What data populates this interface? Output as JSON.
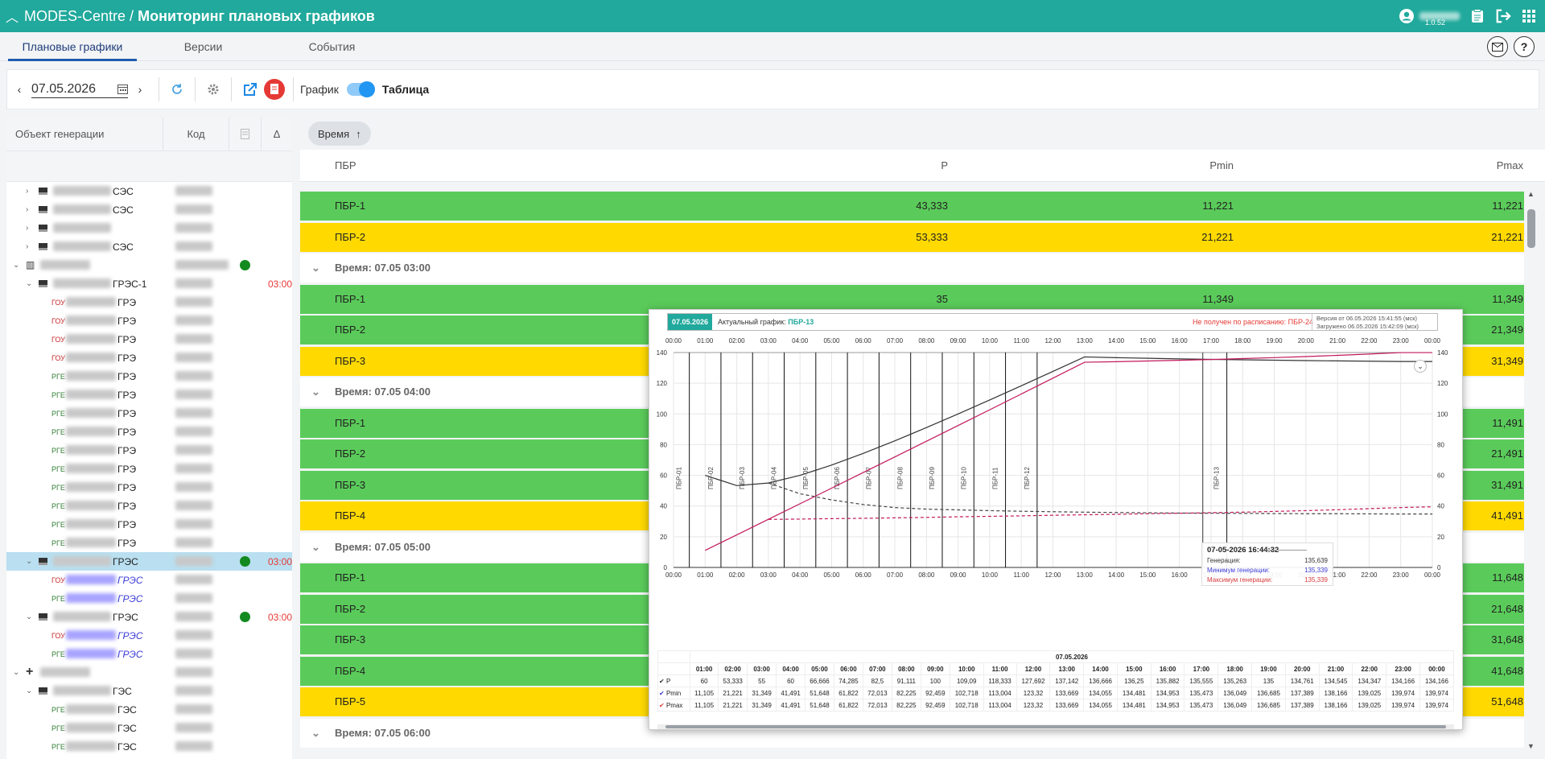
{
  "app": {
    "brand": "MODES-Centre",
    "separator": "/",
    "page_title": "Мониторинг плановых графиков",
    "version": "1.0.52"
  },
  "tabs": [
    "Плановые графики",
    "Версии",
    "События"
  ],
  "toolbar": {
    "date": "07.05.2026",
    "chart_label": "График",
    "table_label": "Таблица"
  },
  "left_panel": {
    "col_object": "Объект генерации",
    "col_code": "Код",
    "col_delta": "Δ",
    "rows": [
      {
        "indent": 2,
        "kind": "sq",
        "suffix": "СЭС",
        "expand": ">"
      },
      {
        "indent": 2,
        "kind": "sq",
        "suffix": "СЭС",
        "expand": ">"
      },
      {
        "indent": 2,
        "kind": "sq",
        "suffix": "",
        "expand": ">"
      },
      {
        "indent": 2,
        "kind": "sq",
        "suffix": "СЭС",
        "expand": ">"
      },
      {
        "indent": 1,
        "kind": "plant",
        "suffix": "",
        "expand": "v",
        "dot": true
      },
      {
        "indent": 2,
        "kind": "sq",
        "suffix": "ГРЭС-1",
        "expand": "v",
        "time": "03:00"
      },
      {
        "indent": 3,
        "kind": "ГОУ",
        "suffix": "ГРЭ"
      },
      {
        "indent": 3,
        "kind": "ГОУ",
        "suffix": "ГРЭ"
      },
      {
        "indent": 3,
        "kind": "ГОУ",
        "suffix": "ГРЭ"
      },
      {
        "indent": 3,
        "kind": "ГОУ",
        "suffix": "ГРЭ"
      },
      {
        "indent": 3,
        "kind": "РГЕ",
        "suffix": "ГРЭ"
      },
      {
        "indent": 3,
        "kind": "РГЕ",
        "suffix": "ГРЭ"
      },
      {
        "indent": 3,
        "kind": "РГЕ",
        "suffix": "ГРЭ"
      },
      {
        "indent": 3,
        "kind": "РГЕ",
        "suffix": "ГРЭ"
      },
      {
        "indent": 3,
        "kind": "РГЕ",
        "suffix": "ГРЭ"
      },
      {
        "indent": 3,
        "kind": "РГЕ",
        "suffix": "ГРЭ"
      },
      {
        "indent": 3,
        "kind": "РГЕ",
        "suffix": "ГРЭ"
      },
      {
        "indent": 3,
        "kind": "РГЕ",
        "suffix": "ГРЭ"
      },
      {
        "indent": 3,
        "kind": "РГЕ",
        "suffix": "ГРЭ"
      },
      {
        "indent": 3,
        "kind": "РГЕ",
        "suffix": "ГРЭ"
      },
      {
        "indent": 2,
        "kind": "sq",
        "suffix": "ГРЭС",
        "expand": "v",
        "dot": true,
        "time": "03:00",
        "selected": true
      },
      {
        "indent": 3,
        "kind": "ГОУ",
        "suffix": "ГРЭС",
        "blue": true
      },
      {
        "indent": 3,
        "kind": "РГЕ",
        "suffix": "ГРЭС",
        "blue": true
      },
      {
        "indent": 2,
        "kind": "sq",
        "suffix": "ГРЭС",
        "expand": "v",
        "dot": true,
        "time": "03:00"
      },
      {
        "indent": 3,
        "kind": "ГОУ",
        "suffix": "ГРЭС",
        "blue": true
      },
      {
        "indent": 3,
        "kind": "РГЕ",
        "suffix": "ГРЭС",
        "blue": true
      },
      {
        "indent": 1,
        "kind": "cross",
        "suffix": "",
        "expand": "v"
      },
      {
        "indent": 2,
        "kind": "sq",
        "suffix": "ГЭС",
        "expand": "v"
      },
      {
        "indent": 3,
        "kind": "РГЕ",
        "suffix": "ГЭС"
      },
      {
        "indent": 3,
        "kind": "РГЕ",
        "suffix": "ГЭС"
      },
      {
        "indent": 3,
        "kind": "РГЕ",
        "suffix": "ГЭС"
      }
    ]
  },
  "grid": {
    "group_chip": "Время",
    "headers": {
      "pbr": "ПБР",
      "p": "P",
      "pmin": "Pmin",
      "pmax": "Pmax"
    },
    "rows": [
      {
        "type": "g",
        "name": "ПБР-1",
        "p": "43,333",
        "pmin": "11,221",
        "pmax": "11,221"
      },
      {
        "type": "y",
        "name": "ПБР-2",
        "p": "53,333",
        "pmin": "21,221",
        "pmax": "21,221"
      },
      {
        "type": "h",
        "name": "Время: 07.05 03:00"
      },
      {
        "type": "g",
        "name": "ПБР-1",
        "p": "35",
        "pmin": "11,349",
        "pmax": "11,349"
      },
      {
        "type": "g",
        "name": "ПБР-2",
        "p": "",
        "pmin": "",
        "pmax": "21,349"
      },
      {
        "type": "y",
        "name": "ПБР-3",
        "p": "",
        "pmin": "",
        "pmax": "31,349"
      },
      {
        "type": "h",
        "name": "Время: 07.05 04:00"
      },
      {
        "type": "g",
        "name": "ПБР-1",
        "p": "",
        "pmin": "",
        "pmax": "11,491"
      },
      {
        "type": "g",
        "name": "ПБР-2",
        "p": "",
        "pmin": "",
        "pmax": "21,491"
      },
      {
        "type": "g",
        "name": "ПБР-3",
        "p": "",
        "pmin": "",
        "pmax": "31,491"
      },
      {
        "type": "y",
        "name": "ПБР-4",
        "p": "",
        "pmin": "",
        "pmax": "41,491"
      },
      {
        "type": "h",
        "name": "Время: 07.05 05:00"
      },
      {
        "type": "g",
        "name": "ПБР-1",
        "p": "",
        "pmin": "",
        "pmax": "11,648"
      },
      {
        "type": "g",
        "name": "ПБР-2",
        "p": "",
        "pmin": "",
        "pmax": "21,648"
      },
      {
        "type": "g",
        "name": "ПБР-3",
        "p": "",
        "pmin": "",
        "pmax": "31,648"
      },
      {
        "type": "g",
        "name": "ПБР-4",
        "p": "",
        "pmin": "",
        "pmax": "41,648"
      },
      {
        "type": "y",
        "name": "ПБР-5",
        "p": "",
        "pmin": "",
        "pmax": "51,648"
      },
      {
        "type": "h",
        "name": "Время: 07.05 06:00"
      }
    ]
  },
  "popup": {
    "date": "07.05.2026",
    "actual_label": "Актуальный график:",
    "actual_value": "ПБР-13",
    "not_received": "Не получен по расписанию: ПБР-24",
    "version_line": "Версия от 06.05.2026 15:41:55 (мск)",
    "loaded_line": "Загружено 06.05.2026 15:42:09 (мск)",
    "tooltip": {
      "title": "07-05-2026 16:44:32",
      "rows": [
        {
          "label": "Генерация:",
          "value": "135,639",
          "color": "#333333"
        },
        {
          "label": "Минимум генерации:",
          "value": "135,339",
          "color": "#3b3bd6"
        },
        {
          "label": "Максимум генерации:",
          "value": "135,339",
          "color": "#d63b3b"
        }
      ]
    },
    "table_date": "07.05.2026",
    "table_rows": [
      {
        "name": "P",
        "color": "#333333",
        "values": [
          "60",
          "53,333",
          "55",
          "60",
          "66,666",
          "74,285",
          "82,5",
          "91,111",
          "100",
          "109,09",
          "118,333",
          "127,692",
          "137,142",
          "136,666",
          "136,25",
          "135,882",
          "135,555",
          "135,263",
          "135",
          "134,761",
          "134,545",
          "134,347",
          "134,166",
          "134,166"
        ]
      },
      {
        "name": "Pmin",
        "color": "#3b3bd6",
        "values": [
          "11,105",
          "21,221",
          "31,349",
          "41,491",
          "51,648",
          "61,822",
          "72,013",
          "82,225",
          "92,459",
          "102,718",
          "113,004",
          "123,32",
          "133,669",
          "134,055",
          "134,481",
          "134,953",
          "135,473",
          "136,049",
          "136,685",
          "137,389",
          "138,166",
          "139,025",
          "139,974",
          "139,974"
        ]
      },
      {
        "name": "Pmax",
        "color": "#d63b3b",
        "values": [
          "11,105",
          "21,221",
          "31,349",
          "41,491",
          "51,648",
          "61,822",
          "72,013",
          "82,225",
          "92,459",
          "102,718",
          "113,004",
          "123,32",
          "133,669",
          "134,055",
          "134,481",
          "134,953",
          "135,473",
          "136,049",
          "136,685",
          "137,389",
          "138,166",
          "139,025",
          "139,974",
          "139,974"
        ]
      }
    ]
  },
  "chart_data": {
    "type": "line",
    "x": [
      "00:00",
      "01:00",
      "02:00",
      "03:00",
      "04:00",
      "05:00",
      "06:00",
      "07:00",
      "08:00",
      "09:00",
      "10:00",
      "11:00",
      "12:00",
      "13:00",
      "14:00",
      "15:00",
      "16:00",
      "17:00",
      "18:00",
      "19:00",
      "20:00",
      "21:00",
      "22:00",
      "23:00",
      "00:00"
    ],
    "ylim": [
      0,
      140
    ],
    "yticks": [
      0,
      20,
      40,
      60,
      80,
      100,
      120,
      140
    ],
    "series": [
      {
        "name": "P",
        "color": "#333333",
        "values": [
          null,
          60,
          53.333,
          55,
          60,
          66.666,
          74.285,
          82.5,
          91.111,
          100,
          109.09,
          118.333,
          127.692,
          137.142,
          136.666,
          136.25,
          135.882,
          135.555,
          135.263,
          135,
          134.761,
          134.545,
          134.347,
          134.166,
          134.166
        ]
      },
      {
        "name": "Pmax",
        "color": "#c2185b",
        "values": [
          null,
          11.105,
          21.221,
          31.349,
          41.491,
          51.648,
          61.822,
          72.013,
          82.225,
          92.459,
          102.718,
          113.004,
          123.32,
          133.669,
          134.055,
          134.481,
          134.953,
          135.473,
          136.049,
          136.685,
          137.389,
          138.166,
          139.025,
          139.974,
          139.974
        ]
      }
    ],
    "dashed_series": [
      {
        "color": "#444444",
        "values": [
          null,
          null,
          null,
          55,
          48,
          44,
          41,
          39,
          38,
          37.5,
          37,
          36.6,
          36.3,
          36,
          35.8,
          35.6,
          35.4,
          35.3,
          35.2,
          35.1,
          35,
          35,
          34.9,
          34.8,
          34.8
        ]
      },
      {
        "color": "#c2185b",
        "values": [
          null,
          null,
          null,
          31.3,
          31.5,
          31.8,
          32,
          32.3,
          32.6,
          33,
          33.3,
          33.6,
          34,
          34.3,
          34.6,
          35,
          35.3,
          35.7,
          36,
          36.5,
          37,
          37.6,
          38.3,
          39,
          39.5
        ]
      }
    ],
    "markers": [
      "ПБР-01",
      "ПБР-02",
      "ПБР-03",
      "ПБР-04",
      "ПБР-05",
      "ПБР-06",
      "ПБР-07",
      "ПБР-08",
      "ПБР-09",
      "ПБР-10",
      "ПБР-11",
      "ПБР-12",
      "ПБР-13"
    ],
    "marker_hours": [
      0.5,
      1.5,
      2.5,
      3.5,
      4.5,
      5.5,
      6.5,
      7.5,
      8.5,
      9.5,
      10.5,
      11.5,
      17.5
    ]
  }
}
